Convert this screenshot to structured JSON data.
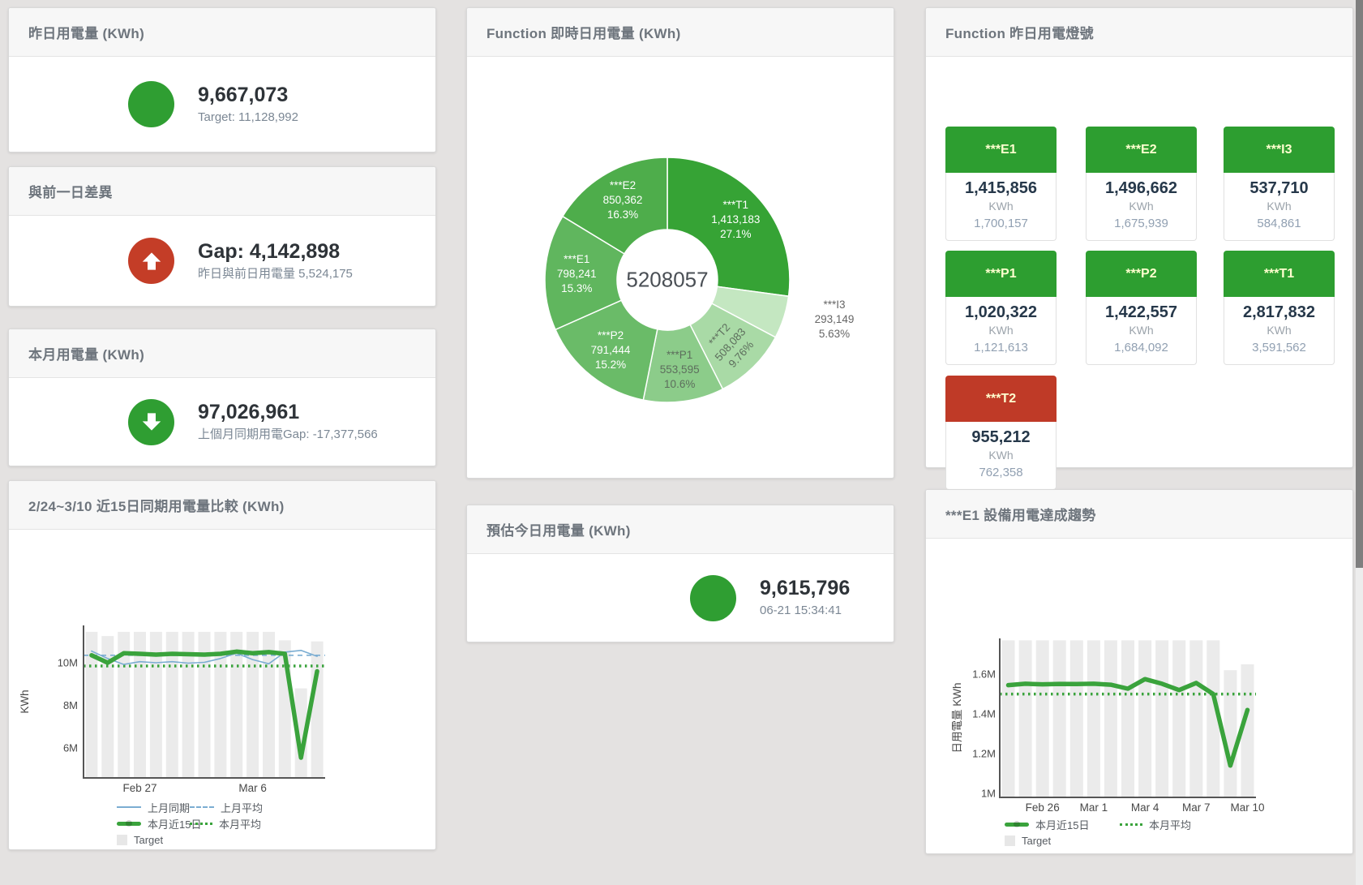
{
  "stats": [
    {
      "title": "昨日用電量 (KWh)",
      "icon": "circle",
      "icon_color": "#2f9e32",
      "value": "9,667,073",
      "subtitle": "Target: 11,128,992"
    },
    {
      "title": "與前一日差異",
      "icon": "arrow-up",
      "icon_color": "#c43d27",
      "value": "Gap: 4,142,898",
      "subtitle": "昨日與前日用電量 5,524,175"
    },
    {
      "title": "本月用電量 (KWh)",
      "icon": "arrow-down",
      "icon_color": "#2f9e32",
      "value": "97,026,961",
      "subtitle": "上個月同期用電Gap: -17,377,566"
    },
    {
      "title": "預估今日用電量 (KWh)",
      "icon": "circle",
      "icon_color": "#2f9e32",
      "value": "9,615,796",
      "subtitle": "06-21 15:34:41"
    }
  ],
  "lights": {
    "title": "Function 昨日用電燈號",
    "unit": "KWh",
    "label_color": "#ffffcf",
    "green": "#2d9e30",
    "red": "#bf3a27",
    "tiles": [
      {
        "label": "***E1",
        "value": "1,415,856",
        "target": "1,700,157",
        "status": "green"
      },
      {
        "label": "***E2",
        "value": "1,496,662",
        "target": "1,675,939",
        "status": "green"
      },
      {
        "label": "***I3",
        "value": "537,710",
        "target": "584,861",
        "status": "green"
      },
      {
        "label": "***P1",
        "value": "1,020,322",
        "target": "1,121,613",
        "status": "green"
      },
      {
        "label": "***P2",
        "value": "1,422,557",
        "target": "1,684,092",
        "status": "green"
      },
      {
        "label": "***T1",
        "value": "2,817,832",
        "target": "3,591,562",
        "status": "green"
      },
      {
        "label": "***T2",
        "value": "955,212",
        "target": "762,358",
        "status": "red"
      }
    ]
  },
  "chart_data": [
    {
      "id": "realtime_donut",
      "type": "pie",
      "title": "Function 即時日用電量 (KWh)",
      "center_total": "5208057",
      "slices": [
        {
          "name": "***T1",
          "value": 1413183,
          "display_value": "1,413,183",
          "pct": "27.1%",
          "color": "#36a335",
          "label_color": "#ffffff"
        },
        {
          "name": "***I3",
          "value": 293149,
          "display_value": "293,149",
          "pct": "5.63%",
          "color": "#c4e7c1",
          "label_color": "#666666",
          "outside": true
        },
        {
          "name": "***T2",
          "value": 508083,
          "display_value": "508,083",
          "pct": "9.76%",
          "color": "#a9daa6",
          "label_color": "#5d6e5d",
          "rotate": -48
        },
        {
          "name": "***P1",
          "value": 553595,
          "display_value": "553,595",
          "pct": "10.6%",
          "color": "#8ccc8a",
          "label_color": "#5d6e5d"
        },
        {
          "name": "***P2",
          "value": 791444,
          "display_value": "791,444",
          "pct": "15.2%",
          "color": "#6abb68",
          "label_color": "#ffffff"
        },
        {
          "name": "***E1",
          "value": 798241,
          "display_value": "798,241",
          "pct": "15.3%",
          "color": "#60b65e",
          "label_color": "#ffffff"
        },
        {
          "name": "***E2",
          "value": 850362,
          "display_value": "850,362",
          "pct": "16.3%",
          "color": "#4ead4b",
          "label_color": "#ffffff"
        }
      ]
    },
    {
      "id": "compare15",
      "type": "line+bar",
      "title": "2/24~3/10 近15日同期用電量比較 (KWh)",
      "ylabel": "KWh",
      "ylim": [
        4.6,
        11.75
      ],
      "yticks": [
        {
          "label": "10M",
          "value": 10
        },
        {
          "label": "8M",
          "value": 8
        },
        {
          "label": "6M",
          "value": 6
        }
      ],
      "x_labels": [
        {
          "label": "Feb 27",
          "index": 3
        },
        {
          "label": "Mar 6",
          "index": 10
        }
      ],
      "target_bars": {
        "name": "Target",
        "color": "#ebebeb",
        "values": [
          11.45,
          11.25,
          11.45,
          11.45,
          11.45,
          11.45,
          11.45,
          11.45,
          11.45,
          11.45,
          11.45,
          11.45,
          11.05,
          8.8,
          11.0
        ]
      },
      "series": [
        {
          "name": "上月同期",
          "style": "line",
          "color": "#7badd2",
          "width": 1.6,
          "values": [
            10.55,
            10.2,
            9.92,
            10.05,
            10.0,
            10.05,
            9.98,
            10.02,
            10.2,
            10.45,
            10.15,
            9.95,
            10.5,
            10.58,
            10.3
          ]
        },
        {
          "name": "上月平均",
          "style": "dashed",
          "color": "#7badd2",
          "width": 1.6,
          "avg": 10.35
        },
        {
          "name": "本月近15日",
          "style": "thick",
          "color": "#3aa33c",
          "width": 5.5,
          "values": [
            10.35,
            10.0,
            10.45,
            10.42,
            10.38,
            10.42,
            10.4,
            10.38,
            10.42,
            10.52,
            10.45,
            10.5,
            10.42,
            5.55,
            9.6
          ]
        },
        {
          "name": "本月平均",
          "style": "dotted",
          "color": "#3aa33c",
          "width": 3.5,
          "avg": 9.85
        }
      ],
      "legend": [
        "上月同期",
        "上月平均",
        "本月近15日",
        "本月平均",
        "Target"
      ]
    },
    {
      "id": "e1_trend",
      "type": "line+bar",
      "title": "***E1 設備用電達成趨勢",
      "ylabel": "日用電量 KWh",
      "ylim": [
        0.98,
        1.78
      ],
      "yticks": [
        {
          "label": "1.6M",
          "value": 1.6
        },
        {
          "label": "1.4M",
          "value": 1.4
        },
        {
          "label": "1.2M",
          "value": 1.2
        },
        {
          "label": "1M",
          "value": 1.0
        }
      ],
      "x_labels": [
        {
          "label": "Feb 26",
          "index": 2
        },
        {
          "label": "Mar 1",
          "index": 5
        },
        {
          "label": "Mar 4",
          "index": 8
        },
        {
          "label": "Mar 7",
          "index": 11
        },
        {
          "label": "Mar 10",
          "index": 14
        }
      ],
      "target_bars": {
        "name": "Target",
        "color": "#ebebeb",
        "values": [
          1.77,
          1.77,
          1.77,
          1.77,
          1.77,
          1.77,
          1.77,
          1.77,
          1.77,
          1.77,
          1.77,
          1.77,
          1.77,
          1.62,
          1.65
        ]
      },
      "series": [
        {
          "name": "本月近15日",
          "style": "thick",
          "color": "#3aa33c",
          "width": 5.5,
          "values": [
            1.545,
            1.552,
            1.549,
            1.551,
            1.55,
            1.552,
            1.547,
            1.527,
            1.575,
            1.552,
            1.52,
            1.556,
            1.5,
            1.14,
            1.42
          ]
        },
        {
          "name": "本月平均",
          "style": "dotted",
          "color": "#3aa33c",
          "width": 3.5,
          "avg": 1.5
        }
      ],
      "legend": [
        "本月近15日",
        "本月平均",
        "Target"
      ]
    }
  ]
}
